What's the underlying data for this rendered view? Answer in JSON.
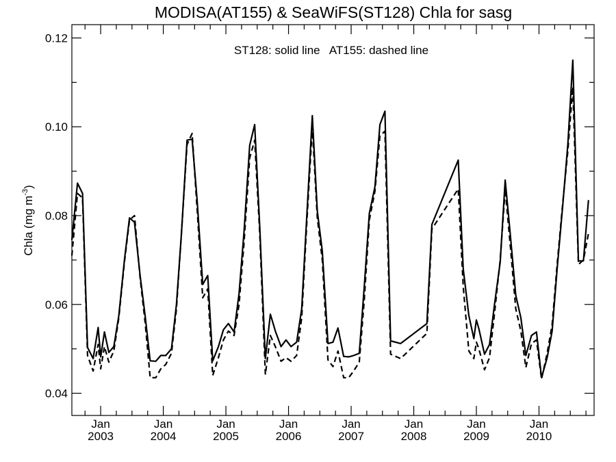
{
  "chart_data": {
    "type": "line",
    "title": "MODISA(AT155) & SeaWiFS(ST128)  Chla for sasg",
    "annotation": "ST128: solid line   AT155: dashed line",
    "ylabel_main": "Chla (mg m",
    "ylabel_sup": "-3",
    "ylabel_end": ")",
    "ylim": [
      0.035,
      0.123
    ],
    "yticks": [
      0.04,
      0.06,
      0.08,
      0.1,
      0.12
    ],
    "ytick_labels": [
      "0.04",
      "0.06",
      "0.08",
      "0.10",
      "0.12"
    ],
    "xlim": [
      2002.54,
      2010.88
    ],
    "xticks": [
      {
        "x": 2003.0,
        "month": "Jan",
        "year": "2003"
      },
      {
        "x": 2004.0,
        "month": "Jan",
        "year": "2004"
      },
      {
        "x": 2005.0,
        "month": "Jan",
        "year": "2005"
      },
      {
        "x": 2006.0,
        "month": "Jan",
        "year": "2006"
      },
      {
        "x": 2007.0,
        "month": "Jan",
        "year": "2007"
      },
      {
        "x": 2008.0,
        "month": "Jan",
        "year": "2008"
      },
      {
        "x": 2009.0,
        "month": "Jan",
        "year": "2009"
      },
      {
        "x": 2010.0,
        "month": "Jan",
        "year": "2010"
      }
    ],
    "grid": false,
    "series": [
      {
        "name": "ST128",
        "style": "solid",
        "color": "#000000",
        "points": [
          [
            2002.54,
            0.0745
          ],
          [
            2002.63,
            0.0873
          ],
          [
            2002.71,
            0.085
          ],
          [
            2002.79,
            0.0503
          ],
          [
            2002.88,
            0.0478
          ],
          [
            2002.96,
            0.0548
          ],
          [
            2003.0,
            0.0482
          ],
          [
            2003.06,
            0.0538
          ],
          [
            2003.13,
            0.0492
          ],
          [
            2003.21,
            0.0505
          ],
          [
            2003.29,
            0.0575
          ],
          [
            2003.38,
            0.07
          ],
          [
            2003.46,
            0.0795
          ],
          [
            2003.54,
            0.0785
          ],
          [
            2003.63,
            0.0665
          ],
          [
            2003.71,
            0.0575
          ],
          [
            2003.79,
            0.0473
          ],
          [
            2003.88,
            0.0472
          ],
          [
            2003.96,
            0.0485
          ],
          [
            2004.04,
            0.0485
          ],
          [
            2004.13,
            0.05
          ],
          [
            2004.21,
            0.06
          ],
          [
            2004.29,
            0.076
          ],
          [
            2004.38,
            0.097
          ],
          [
            2004.46,
            0.0972
          ],
          [
            2004.54,
            0.0835
          ],
          [
            2004.63,
            0.0645
          ],
          [
            2004.71,
            0.0665
          ],
          [
            2004.79,
            0.0473
          ],
          [
            2004.88,
            0.0505
          ],
          [
            2004.96,
            0.0543
          ],
          [
            2005.04,
            0.0557
          ],
          [
            2005.13,
            0.0538
          ],
          [
            2005.21,
            0.0625
          ],
          [
            2005.29,
            0.0765
          ],
          [
            2005.38,
            0.0958
          ],
          [
            2005.46,
            0.1005
          ],
          [
            2005.54,
            0.0775
          ],
          [
            2005.63,
            0.0478
          ],
          [
            2005.71,
            0.0578
          ],
          [
            2005.79,
            0.054
          ],
          [
            2005.88,
            0.0505
          ],
          [
            2005.96,
            0.052
          ],
          [
            2006.04,
            0.0505
          ],
          [
            2006.13,
            0.0515
          ],
          [
            2006.21,
            0.059
          ],
          [
            2006.29,
            0.0795
          ],
          [
            2006.38,
            0.1025
          ],
          [
            2006.46,
            0.081
          ],
          [
            2006.54,
            0.072
          ],
          [
            2006.63,
            0.0512
          ],
          [
            2006.71,
            0.0515
          ],
          [
            2006.79,
            0.0547
          ],
          [
            2006.88,
            0.0483
          ],
          [
            2006.96,
            0.0482
          ],
          [
            2007.04,
            0.0485
          ],
          [
            2007.13,
            0.049
          ],
          [
            2007.21,
            0.064
          ],
          [
            2007.29,
            0.0805
          ],
          [
            2007.38,
            0.0865
          ],
          [
            2007.46,
            0.1005
          ],
          [
            2007.54,
            0.1035
          ],
          [
            2007.63,
            0.0518
          ],
          [
            2007.79,
            0.0512
          ],
          [
            2008.21,
            0.0557
          ],
          [
            2008.29,
            0.078
          ],
          [
            2008.71,
            0.0925
          ],
          [
            2008.79,
            0.068
          ],
          [
            2008.88,
            0.0575
          ],
          [
            2008.96,
            0.0523
          ],
          [
            2009.0,
            0.0565
          ],
          [
            2009.04,
            0.0545
          ],
          [
            2009.13,
            0.0488
          ],
          [
            2009.21,
            0.051
          ],
          [
            2009.29,
            0.06
          ],
          [
            2009.38,
            0.0695
          ],
          [
            2009.46,
            0.088
          ],
          [
            2009.54,
            0.076
          ],
          [
            2009.63,
            0.062
          ],
          [
            2009.71,
            0.057
          ],
          [
            2009.79,
            0.0485
          ],
          [
            2009.88,
            0.053
          ],
          [
            2009.96,
            0.0538
          ],
          [
            2010.04,
            0.0435
          ],
          [
            2010.13,
            0.048
          ],
          [
            2010.21,
            0.054
          ],
          [
            2010.29,
            0.068
          ],
          [
            2010.38,
            0.0825
          ],
          [
            2010.46,
            0.096
          ],
          [
            2010.54,
            0.115
          ],
          [
            2010.63,
            0.0698
          ],
          [
            2010.71,
            0.0698
          ],
          [
            2010.79,
            0.0835
          ]
        ]
      },
      {
        "name": "AT155",
        "style": "dashed",
        "color": "#000000",
        "points": [
          [
            2002.54,
            0.071
          ],
          [
            2002.63,
            0.085
          ],
          [
            2002.71,
            0.084
          ],
          [
            2002.79,
            0.0485
          ],
          [
            2002.88,
            0.045
          ],
          [
            2002.96,
            0.051
          ],
          [
            2003.0,
            0.0455
          ],
          [
            2003.06,
            0.0505
          ],
          [
            2003.13,
            0.047
          ],
          [
            2003.21,
            0.0495
          ],
          [
            2003.29,
            0.057
          ],
          [
            2003.38,
            0.0695
          ],
          [
            2003.46,
            0.079
          ],
          [
            2003.54,
            0.08
          ],
          [
            2003.63,
            0.066
          ],
          [
            2003.71,
            0.056
          ],
          [
            2003.79,
            0.0435
          ],
          [
            2003.88,
            0.0435
          ],
          [
            2003.96,
            0.0455
          ],
          [
            2004.04,
            0.0465
          ],
          [
            2004.13,
            0.049
          ],
          [
            2004.21,
            0.059
          ],
          [
            2004.29,
            0.076
          ],
          [
            2004.38,
            0.096
          ],
          [
            2004.46,
            0.0985
          ],
          [
            2004.54,
            0.0815
          ],
          [
            2004.63,
            0.0615
          ],
          [
            2004.71,
            0.0635
          ],
          [
            2004.79,
            0.044
          ],
          [
            2004.88,
            0.048
          ],
          [
            2004.96,
            0.052
          ],
          [
            2005.04,
            0.054
          ],
          [
            2005.13,
            0.053
          ],
          [
            2005.21,
            0.06
          ],
          [
            2005.29,
            0.074
          ],
          [
            2005.38,
            0.093
          ],
          [
            2005.46,
            0.097
          ],
          [
            2005.54,
            0.076
          ],
          [
            2005.63,
            0.0442
          ],
          [
            2005.71,
            0.053
          ],
          [
            2005.79,
            0.0505
          ],
          [
            2005.88,
            0.0472
          ],
          [
            2005.96,
            0.048
          ],
          [
            2006.04,
            0.0472
          ],
          [
            2006.13,
            0.0485
          ],
          [
            2006.21,
            0.057
          ],
          [
            2006.29,
            0.078
          ],
          [
            2006.38,
            0.1
          ],
          [
            2006.46,
            0.0795
          ],
          [
            2006.54,
            0.07
          ],
          [
            2006.63,
            0.0475
          ],
          [
            2006.71,
            0.046
          ],
          [
            2006.79,
            0.0495
          ],
          [
            2006.88,
            0.0435
          ],
          [
            2006.96,
            0.0435
          ],
          [
            2007.04,
            0.045
          ],
          [
            2007.13,
            0.047
          ],
          [
            2007.21,
            0.061
          ],
          [
            2007.29,
            0.079
          ],
          [
            2007.38,
            0.0855
          ],
          [
            2007.46,
            0.098
          ],
          [
            2007.54,
            0.099
          ],
          [
            2007.63,
            0.0488
          ],
          [
            2007.79,
            0.0478
          ],
          [
            2008.21,
            0.0535
          ],
          [
            2008.29,
            0.077
          ],
          [
            2008.71,
            0.086
          ],
          [
            2008.79,
            0.064
          ],
          [
            2008.88,
            0.0495
          ],
          [
            2008.96,
            0.0478
          ],
          [
            2009.0,
            0.0515
          ],
          [
            2009.04,
            0.05
          ],
          [
            2009.13,
            0.0453
          ],
          [
            2009.21,
            0.048
          ],
          [
            2009.29,
            0.058
          ],
          [
            2009.38,
            0.07
          ],
          [
            2009.46,
            0.086
          ],
          [
            2009.54,
            0.0735
          ],
          [
            2009.63,
            0.059
          ],
          [
            2009.71,
            0.054
          ],
          [
            2009.79,
            0.0458
          ],
          [
            2009.88,
            0.0512
          ],
          [
            2009.96,
            0.052
          ],
          [
            2010.04,
            0.0432
          ],
          [
            2010.13,
            0.049
          ],
          [
            2010.21,
            0.0555
          ],
          [
            2010.29,
            0.069
          ],
          [
            2010.38,
            0.083
          ],
          [
            2010.46,
            0.0945
          ],
          [
            2010.54,
            0.109
          ],
          [
            2010.63,
            0.069
          ],
          [
            2010.71,
            0.07
          ],
          [
            2010.79,
            0.076
          ]
        ]
      }
    ]
  }
}
